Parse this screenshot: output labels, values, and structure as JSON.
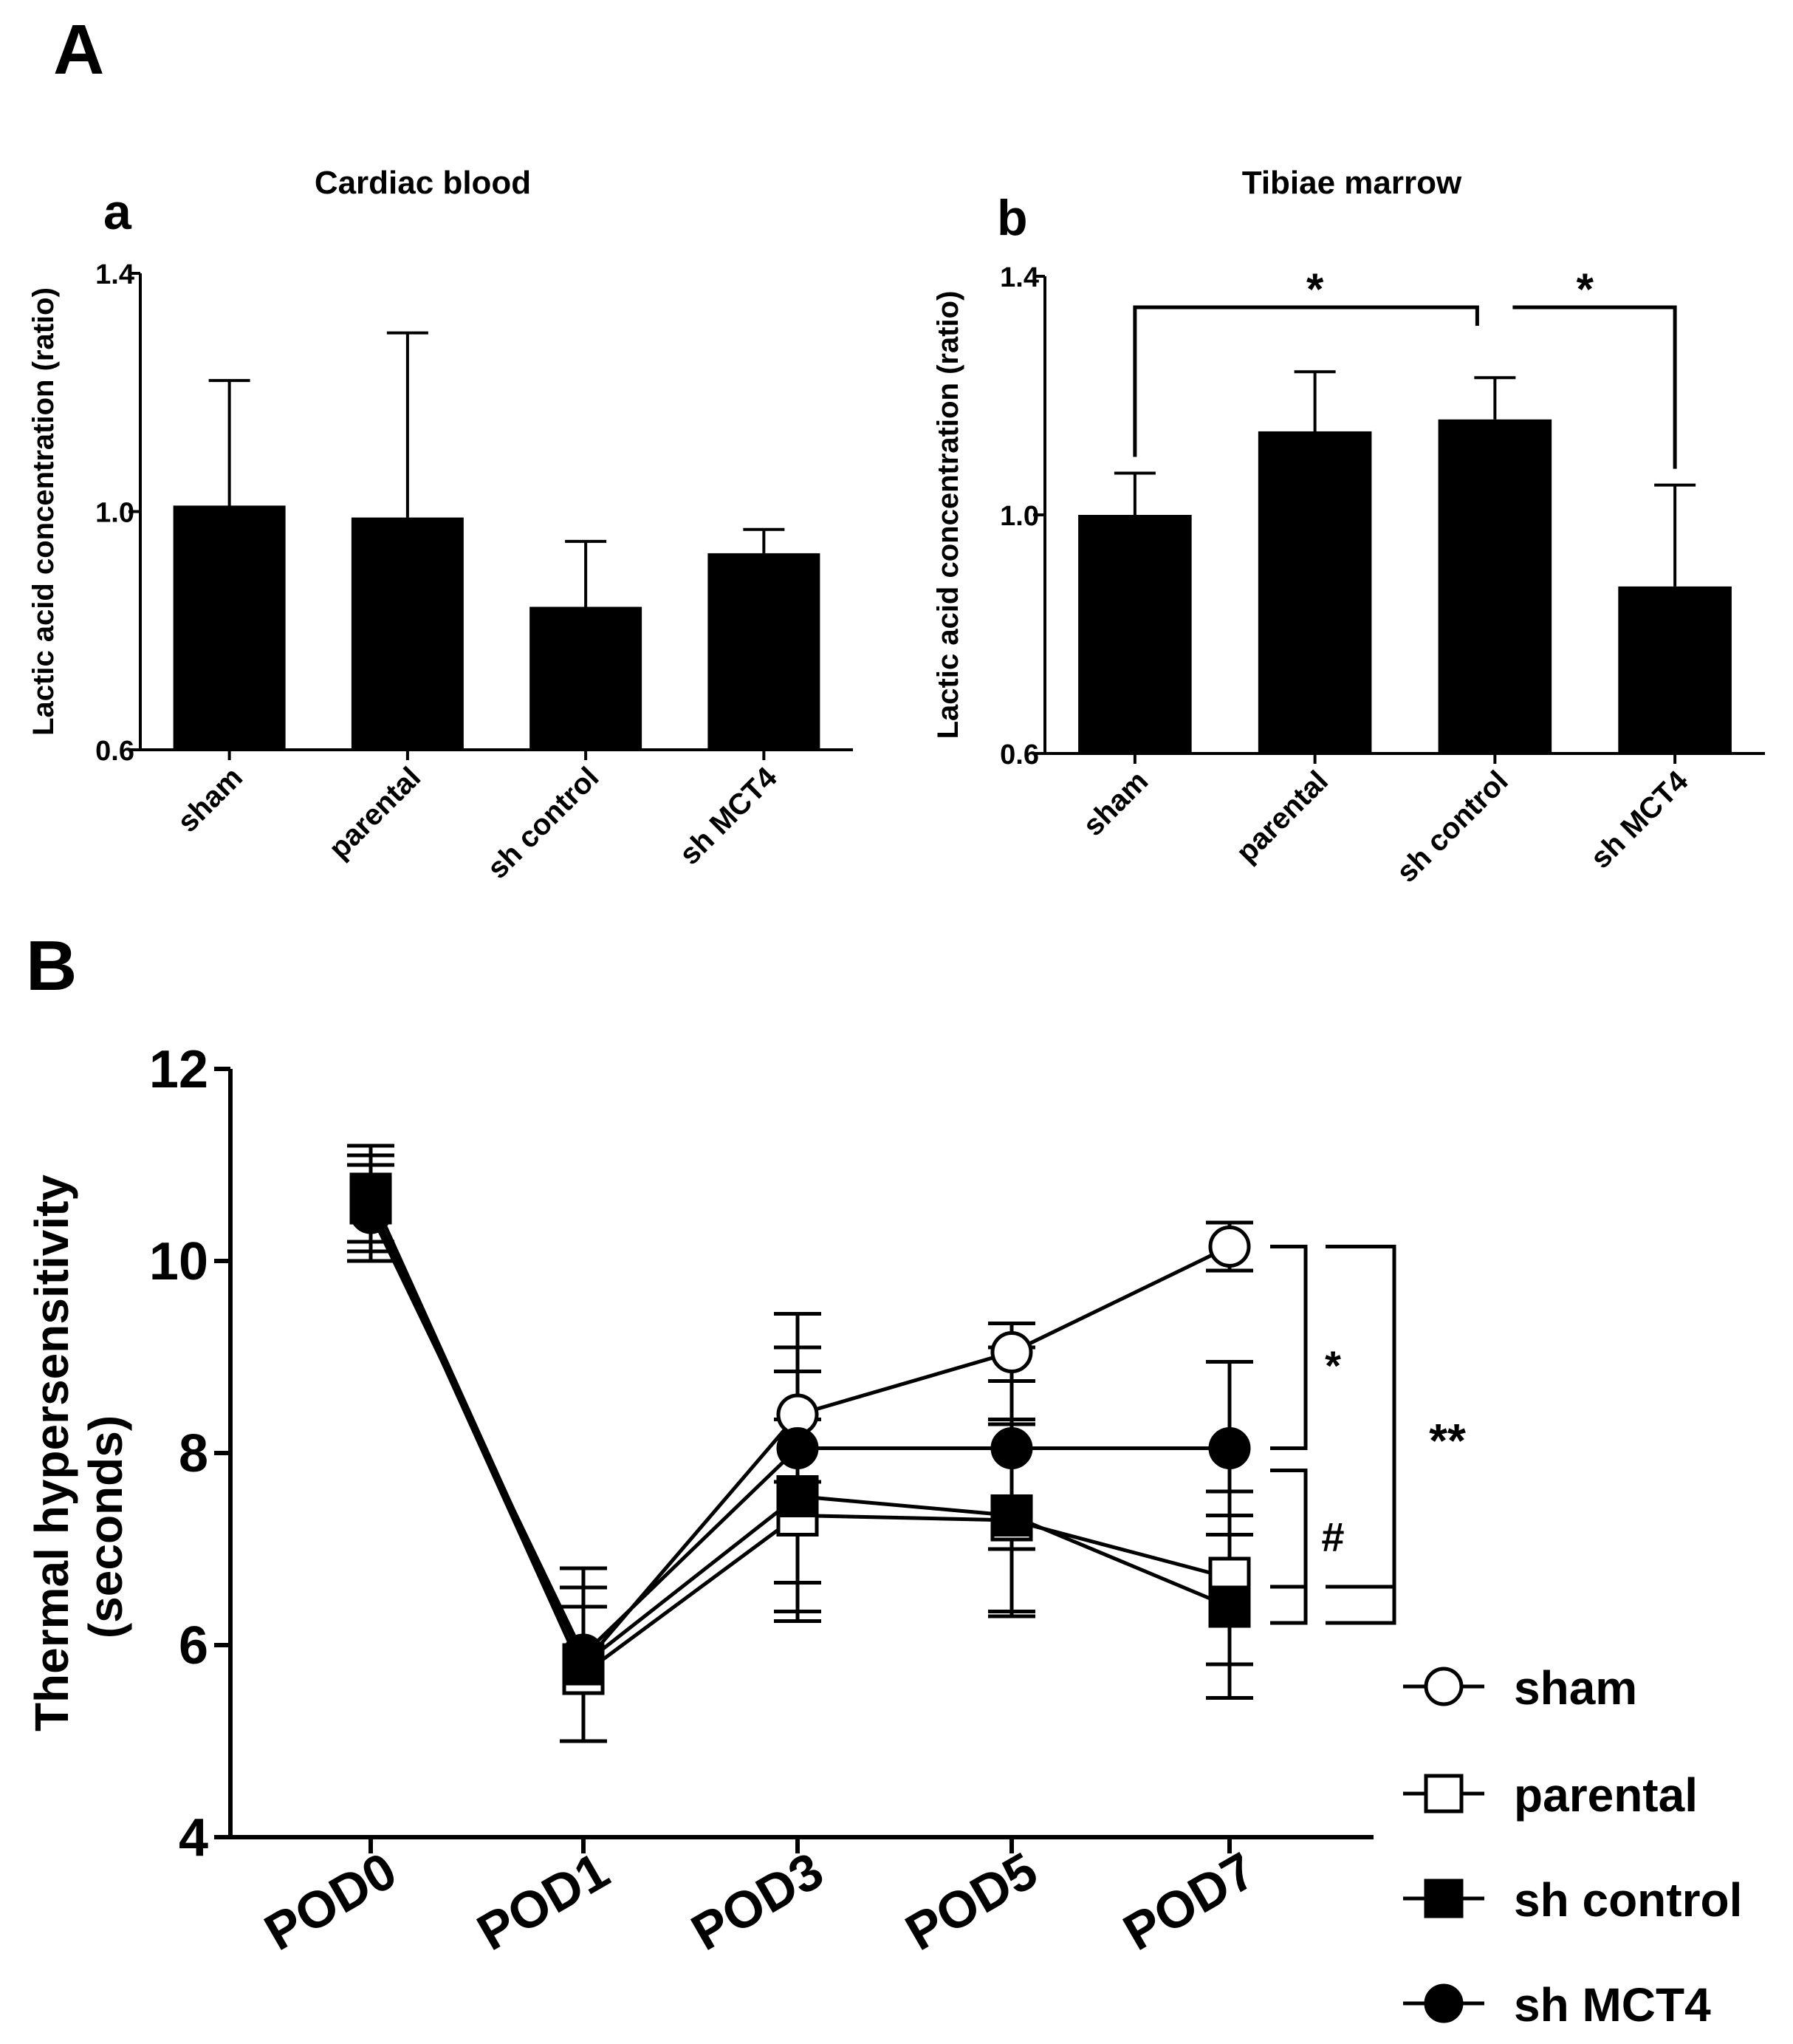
{
  "figure": {
    "panel_a_letter": "A",
    "panel_b_letter": "B"
  },
  "chart_data": [
    {
      "type": "bar",
      "panel": "a",
      "title": "Cardiac blood",
      "ylabel": "Lactic acid concentration (ratio)",
      "ylim": [
        0.6,
        1.4
      ],
      "yticks": [
        0.6,
        1.0,
        1.4
      ],
      "ytick_labels": [
        "0.6",
        "1.0",
        "1.4"
      ],
      "categories": [
        "sham",
        "parental",
        "sh control",
        "sh MCT4"
      ],
      "values": [
        1.01,
        0.99,
        0.84,
        0.93
      ],
      "errors": [
        0.21,
        0.31,
        0.11,
        0.04
      ],
      "significance": []
    },
    {
      "type": "bar",
      "panel": "b",
      "title": "Tibiae marrow",
      "ylabel": "Lactic acid concentration (ratio)",
      "ylim": [
        0.6,
        1.4
      ],
      "yticks": [
        0.6,
        1.0,
        1.4
      ],
      "ytick_labels": [
        "0.6",
        "1.0",
        "1.4"
      ],
      "categories": [
        "sham",
        "parental",
        "sh control",
        "sh MCT4"
      ],
      "values": [
        1.0,
        1.14,
        1.16,
        0.88
      ],
      "errors": [
        0.07,
        0.1,
        0.07,
        0.17
      ],
      "significance": [
        {
          "from": 0,
          "to": 2,
          "label": "*"
        },
        {
          "from": 2,
          "to": 3,
          "label": "*"
        }
      ]
    },
    {
      "type": "line",
      "panel": "B",
      "ylabel": "Thermal hypersensitivity",
      "ylabel2": "(seconds)",
      "ylim": [
        4,
        12
      ],
      "yticks": [
        4,
        6,
        8,
        10,
        12
      ],
      "ytick_labels": [
        "4",
        "6",
        "8",
        "10",
        "12"
      ],
      "categories": [
        "POD0",
        "POD1",
        "POD3",
        "POD5",
        "POD7"
      ],
      "series": [
        {
          "name": "sham",
          "marker": "open-circle",
          "values": [
            10.6,
            5.8,
            8.4,
            9.05,
            10.15
          ],
          "errors": [
            0.5,
            0.8,
            0.7,
            0.3,
            0.25
          ]
        },
        {
          "name": "parental",
          "marker": "open-square",
          "values": [
            10.6,
            5.7,
            7.35,
            7.3,
            6.7
          ],
          "errors": [
            0.5,
            0.7,
            1.0,
            1.0,
            0.9
          ]
        },
        {
          "name": "sh control",
          "marker": "filled-square",
          "values": [
            10.7,
            5.8,
            7.55,
            7.35,
            6.4
          ],
          "errors": [
            0.5,
            0.8,
            1.3,
            1.0,
            0.95
          ]
        },
        {
          "name": "sh MCT4",
          "marker": "filled-circle",
          "values": [
            10.5,
            5.9,
            8.05,
            8.05,
            8.05
          ],
          "errors": [
            0.5,
            0.9,
            1.4,
            1.05,
            0.9
          ]
        }
      ],
      "significance": [
        {
          "label": "*",
          "between": [
            "sham",
            "sh MCT4"
          ]
        },
        {
          "label": "#",
          "between": [
            "parental",
            "sh control"
          ]
        },
        {
          "label": "**",
          "between": [
            "sham",
            "sh control"
          ]
        }
      ]
    }
  ]
}
